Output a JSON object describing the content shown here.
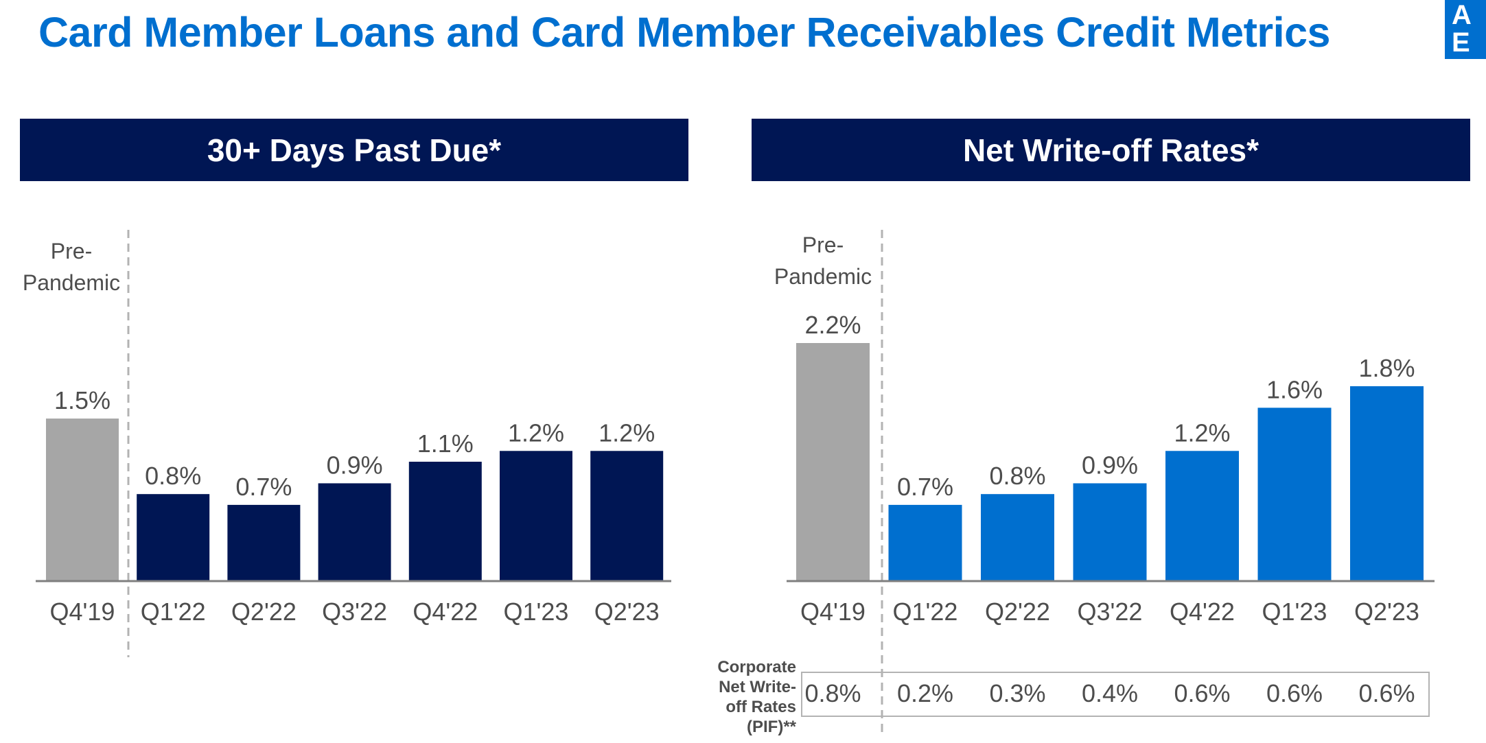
{
  "page": {
    "title": "Card Member Loans and Card Member Receivables Credit Metrics",
    "logo_letters": [
      "A",
      "E"
    ]
  },
  "colors": {
    "title_blue": "#006fcf",
    "header_navy": "#001654",
    "bar_navy": "#001654",
    "bar_blue": "#006fcf",
    "bar_gray": "#a6a6a6",
    "text_gray": "#4d4d4d"
  },
  "panels": {
    "left_header": "30+ Days Past Due*",
    "right_header": "Net Write-off Rates*",
    "pre_pandemic_label": "Pre-\nPandemic"
  },
  "corporate": {
    "label": "Corporate Net Write-off Rates (PIF)**",
    "values": [
      "0.8%",
      "0.2%",
      "0.3%",
      "0.4%",
      "0.6%",
      "0.6%",
      "0.6%"
    ]
  },
  "chart_data": [
    {
      "type": "bar",
      "title": "30+ Days Past Due*",
      "categories": [
        "Q4'19",
        "Q1'22",
        "Q2'22",
        "Q3'22",
        "Q4'22",
        "Q1'23",
        "Q2'23"
      ],
      "values": [
        1.5,
        0.8,
        0.7,
        0.9,
        1.1,
        1.2,
        1.2
      ],
      "labels": [
        "1.5%",
        "0.8%",
        "0.7%",
        "0.9%",
        "1.1%",
        "1.2%",
        "1.2%"
      ],
      "bar_colors": [
        "#a6a6a6",
        "#001654",
        "#001654",
        "#001654",
        "#001654",
        "#001654",
        "#001654"
      ],
      "annotation": "Pre-Pandemic",
      "ylim": [
        0,
        2.2
      ],
      "grid": false,
      "xlabel": "",
      "ylabel": ""
    },
    {
      "type": "bar",
      "title": "Net Write-off Rates*",
      "categories": [
        "Q4'19",
        "Q1'22",
        "Q2'22",
        "Q3'22",
        "Q4'22",
        "Q1'23",
        "Q2'23"
      ],
      "values": [
        2.2,
        0.7,
        0.8,
        0.9,
        1.2,
        1.6,
        1.8
      ],
      "labels": [
        "2.2%",
        "0.7%",
        "0.8%",
        "0.9%",
        "1.2%",
        "1.6%",
        "1.8%"
      ],
      "bar_colors": [
        "#a6a6a6",
        "#006fcf",
        "#006fcf",
        "#006fcf",
        "#006fcf",
        "#006fcf",
        "#006fcf"
      ],
      "annotation": "Pre-Pandemic",
      "ylim": [
        0,
        2.2
      ],
      "grid": false,
      "xlabel": "",
      "ylabel": ""
    }
  ]
}
